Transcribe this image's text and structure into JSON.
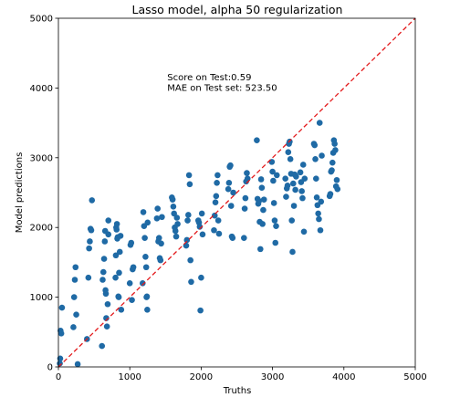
{
  "chart_data": {
    "type": "scatter",
    "title": "Lasso model, alpha 50 regularization",
    "xlabel": "Truths",
    "ylabel": "Model predictions",
    "xlim": [
      0,
      5000
    ],
    "ylim": [
      0,
      5000
    ],
    "xticks": [
      "0",
      "1000",
      "2000",
      "3000",
      "4000",
      "5000"
    ],
    "yticks": [
      "0",
      "1000",
      "2000",
      "3000",
      "4000",
      "5000"
    ],
    "grid": false,
    "annotations": [
      {
        "text": "Score on Test:0.59",
        "x": 1500,
        "y": 4150
      },
      {
        "text": "MAE on Test set: 523.50",
        "x": 1500,
        "y": 4000
      }
    ],
    "reference_line": {
      "style": "dashed",
      "from": [
        0,
        0
      ],
      "to": [
        5000,
        5000
      ]
    },
    "series": [
      {
        "color": "#1f6aa5",
        "points": [
          [
            20,
            50
          ],
          [
            25,
            120
          ],
          [
            30,
            520
          ],
          [
            40,
            480
          ],
          [
            50,
            850
          ],
          [
            210,
            570
          ],
          [
            220,
            1000
          ],
          [
            230,
            1250
          ],
          [
            240,
            1430
          ],
          [
            250,
            750
          ],
          [
            270,
            40
          ],
          [
            400,
            400
          ],
          [
            420,
            1280
          ],
          [
            430,
            1700
          ],
          [
            440,
            1800
          ],
          [
            450,
            1980
          ],
          [
            460,
            1960
          ],
          [
            470,
            2390
          ],
          [
            610,
            300
          ],
          [
            620,
            1250
          ],
          [
            630,
            1360
          ],
          [
            640,
            1550
          ],
          [
            650,
            1800
          ],
          [
            655,
            1950
          ],
          [
            660,
            1100
          ],
          [
            665,
            1050
          ],
          [
            670,
            700
          ],
          [
            680,
            580
          ],
          [
            690,
            900
          ],
          [
            700,
            2100
          ],
          [
            700,
            1900
          ],
          [
            800,
            1280
          ],
          [
            805,
            1600
          ],
          [
            810,
            2000
          ],
          [
            815,
            1970
          ],
          [
            820,
            2050
          ],
          [
            825,
            1840
          ],
          [
            830,
            1860
          ],
          [
            840,
            1010
          ],
          [
            845,
            1000
          ],
          [
            850,
            1350
          ],
          [
            860,
            1650
          ],
          [
            870,
            1880
          ],
          [
            880,
            820
          ],
          [
            1000,
            1200
          ],
          [
            1010,
            1750
          ],
          [
            1020,
            1780
          ],
          [
            1030,
            960
          ],
          [
            1040,
            1400
          ],
          [
            1050,
            1430
          ],
          [
            1180,
            1200
          ],
          [
            1190,
            2220
          ],
          [
            1200,
            2020
          ],
          [
            1210,
            1850
          ],
          [
            1220,
            1580
          ],
          [
            1230,
            1430
          ],
          [
            1235,
            1000
          ],
          [
            1240,
            1010
          ],
          [
            1245,
            820
          ],
          [
            1250,
            2070
          ],
          [
            1380,
            2130
          ],
          [
            1390,
            2270
          ],
          [
            1400,
            1800
          ],
          [
            1410,
            1850
          ],
          [
            1420,
            1560
          ],
          [
            1430,
            1530
          ],
          [
            1440,
            1770
          ],
          [
            1450,
            2150
          ],
          [
            1590,
            2430
          ],
          [
            1600,
            2400
          ],
          [
            1610,
            2300
          ],
          [
            1620,
            2200
          ],
          [
            1630,
            2000
          ],
          [
            1640,
            1950
          ],
          [
            1650,
            1870
          ],
          [
            1660,
            2140
          ],
          [
            1670,
            2050
          ],
          [
            1790,
            1740
          ],
          [
            1800,
            1820
          ],
          [
            1810,
            2100
          ],
          [
            1820,
            2180
          ],
          [
            1830,
            2750
          ],
          [
            1840,
            2620
          ],
          [
            1850,
            1530
          ],
          [
            1860,
            1220
          ],
          [
            1960,
            2100
          ],
          [
            1970,
            2070
          ],
          [
            1980,
            2010
          ],
          [
            1990,
            810
          ],
          [
            2000,
            1280
          ],
          [
            2010,
            2200
          ],
          [
            2020,
            1900
          ],
          [
            2180,
            1960
          ],
          [
            2190,
            2170
          ],
          [
            2200,
            2360
          ],
          [
            2210,
            2450
          ],
          [
            2220,
            2640
          ],
          [
            2230,
            2750
          ],
          [
            2240,
            2100
          ],
          [
            2250,
            1910
          ],
          [
            2380,
            2550
          ],
          [
            2390,
            2640
          ],
          [
            2400,
            2870
          ],
          [
            2410,
            2890
          ],
          [
            2420,
            2310
          ],
          [
            2430,
            1870
          ],
          [
            2440,
            1850
          ],
          [
            2450,
            2500
          ],
          [
            2600,
            1850
          ],
          [
            2610,
            2270
          ],
          [
            2620,
            2420
          ],
          [
            2630,
            2660
          ],
          [
            2640,
            2780
          ],
          [
            2650,
            2700
          ],
          [
            2780,
            3250
          ],
          [
            2790,
            2410
          ],
          [
            2800,
            2340
          ],
          [
            2810,
            2380
          ],
          [
            2820,
            2080
          ],
          [
            2830,
            1690
          ],
          [
            2840,
            2690
          ],
          [
            2850,
            2570
          ],
          [
            2860,
            2050
          ],
          [
            2870,
            2250
          ],
          [
            2880,
            2400
          ],
          [
            2990,
            2940
          ],
          [
            3000,
            2800
          ],
          [
            3010,
            2670
          ],
          [
            3020,
            2350
          ],
          [
            3030,
            2100
          ],
          [
            3040,
            1780
          ],
          [
            3050,
            2020
          ],
          [
            3060,
            2750
          ],
          [
            3180,
            2700
          ],
          [
            3190,
            2440
          ],
          [
            3200,
            2560
          ],
          [
            3210,
            2600
          ],
          [
            3220,
            3080
          ],
          [
            3230,
            3200
          ],
          [
            3240,
            3230
          ],
          [
            3250,
            2980
          ],
          [
            3260,
            2770
          ],
          [
            3270,
            2100
          ],
          [
            3280,
            1650
          ],
          [
            3290,
            2630
          ],
          [
            3300,
            2310
          ],
          [
            3310,
            2760
          ],
          [
            3320,
            2540
          ],
          [
            3330,
            2730
          ],
          [
            3390,
            2790
          ],
          [
            3400,
            2650
          ],
          [
            3410,
            2520
          ],
          [
            3420,
            2420
          ],
          [
            3430,
            2900
          ],
          [
            3440,
            1940
          ],
          [
            3450,
            2700
          ],
          [
            3580,
            3200
          ],
          [
            3590,
            3180
          ],
          [
            3600,
            2980
          ],
          [
            3610,
            2700
          ],
          [
            3620,
            2430
          ],
          [
            3630,
            2320
          ],
          [
            3640,
            2200
          ],
          [
            3650,
            2120
          ],
          [
            3660,
            3500
          ],
          [
            3670,
            1960
          ],
          [
            3680,
            2370
          ],
          [
            3690,
            3030
          ],
          [
            3800,
            2450
          ],
          [
            3810,
            2480
          ],
          [
            3820,
            2800
          ],
          [
            3830,
            2820
          ],
          [
            3840,
            2930
          ],
          [
            3850,
            3070
          ],
          [
            3860,
            3250
          ],
          [
            3870,
            3200
          ],
          [
            3880,
            3110
          ],
          [
            3890,
            2590
          ],
          [
            3900,
            2680
          ],
          [
            3910,
            2550
          ]
        ]
      }
    ]
  }
}
